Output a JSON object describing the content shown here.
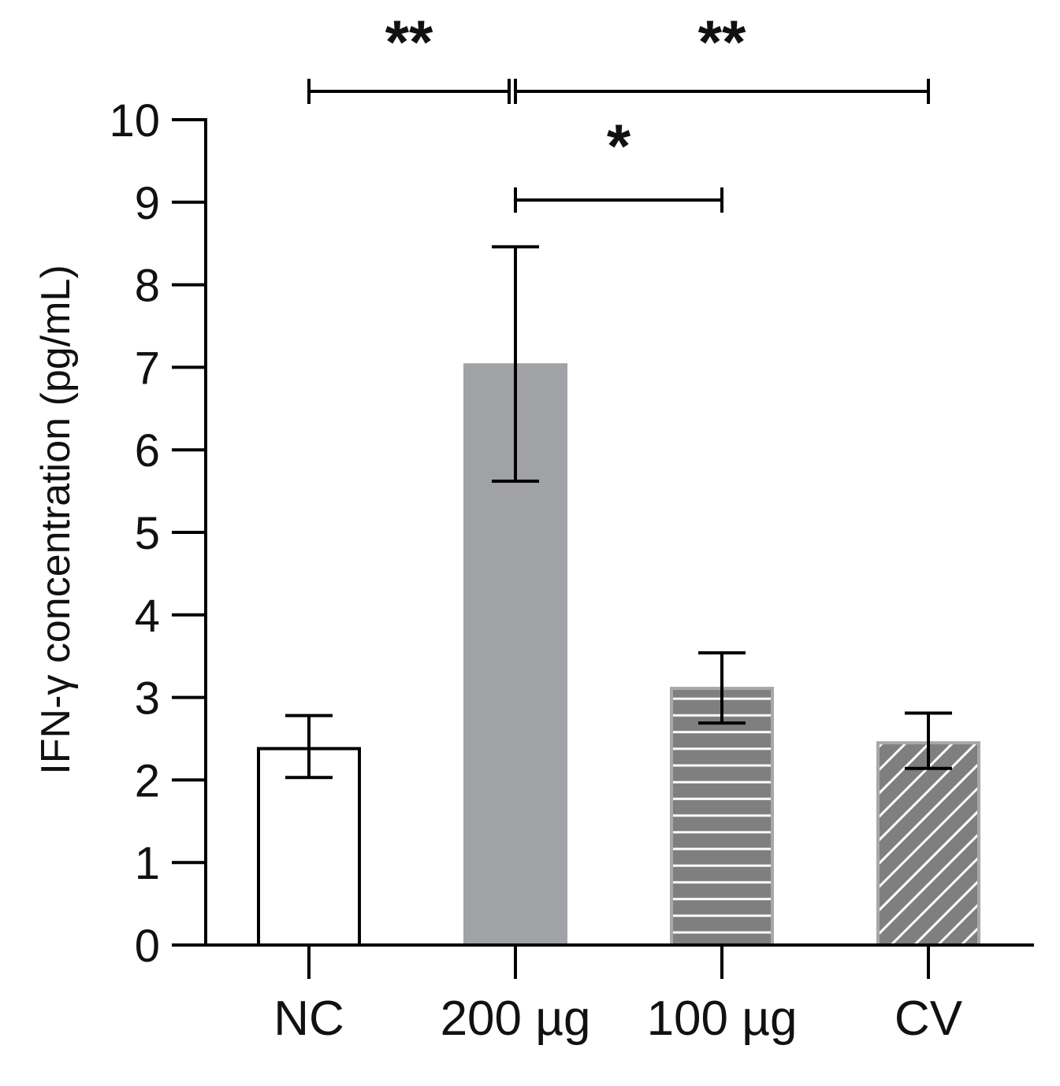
{
  "chart_data": {
    "type": "bar",
    "title": "",
    "xlabel": "",
    "ylabel": "IFN-γ concentration (pg/mL)",
    "ylim": [
      0,
      10
    ],
    "yticks": [
      "0",
      "1",
      "2",
      "3",
      "4",
      "5",
      "6",
      "7",
      "8",
      "9",
      "10"
    ],
    "categories": [
      "NC",
      "200 µg",
      "100 µg",
      "CV"
    ],
    "values": [
      2.38,
      7.03,
      3.11,
      2.45
    ],
    "error_low": [
      2.03,
      5.62,
      2.69,
      2.14
    ],
    "error_high": [
      2.78,
      8.46,
      3.54,
      2.81
    ],
    "bar_styles": [
      {
        "fill": "#ffffff",
        "stroke": "#000000",
        "pattern": "none"
      },
      {
        "fill": "#a1a2a6",
        "stroke": "#a1a2a6",
        "pattern": "none"
      },
      {
        "fill": "#7f7f7f",
        "stroke": "#a8a8a8",
        "pattern": "horizontal-lines"
      },
      {
        "fill": "#7f7f7f",
        "stroke": "#a8a8a8",
        "pattern": "diagonal-lines"
      }
    ],
    "significance": [
      {
        "from": 0,
        "to": 1,
        "label": "**"
      },
      {
        "from": 1,
        "to": 3,
        "label": "**"
      },
      {
        "from": 1,
        "to": 2,
        "label": "*"
      }
    ]
  }
}
